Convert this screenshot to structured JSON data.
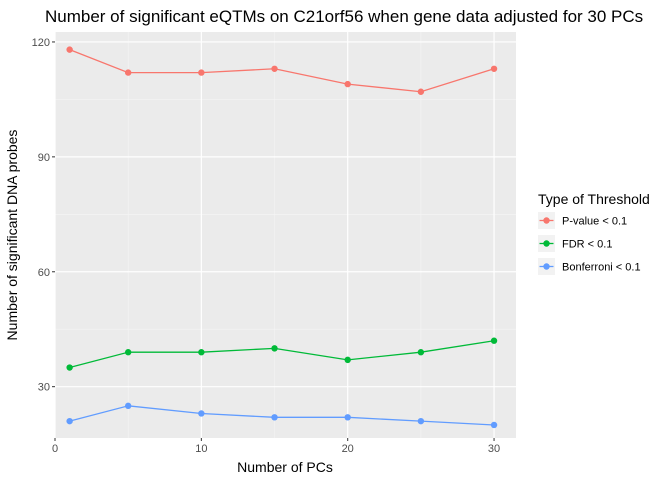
{
  "chart_data": {
    "type": "line",
    "title": "Number of significant eQTMs on C21orf56 when gene data adjusted for 30 PCs",
    "xlabel": "Number of PCs",
    "ylabel": "Number of significant DNA probes",
    "x": [
      1,
      5,
      10,
      15,
      20,
      25,
      30
    ],
    "xlim": [
      0,
      31.5
    ],
    "ylim": [
      16.6,
      122.6
    ],
    "xticks": [
      0,
      10,
      20,
      30
    ],
    "yticks": [
      30,
      60,
      90,
      120
    ],
    "grid": true,
    "legend": {
      "title": "Type of Threshold",
      "placement": "right"
    },
    "series": [
      {
        "name": "P-value < 0.1",
        "color": "#F8766D",
        "values": [
          118,
          112,
          112,
          113,
          109,
          107,
          113
        ]
      },
      {
        "name": "FDR < 0.1",
        "color": "#00BA38",
        "values": [
          35,
          39,
          39,
          40,
          37,
          39,
          42
        ]
      },
      {
        "name": "Bonferroni < 0.1",
        "color": "#619CFF",
        "values": [
          21,
          25,
          23,
          22,
          22,
          21,
          20
        ]
      }
    ]
  }
}
